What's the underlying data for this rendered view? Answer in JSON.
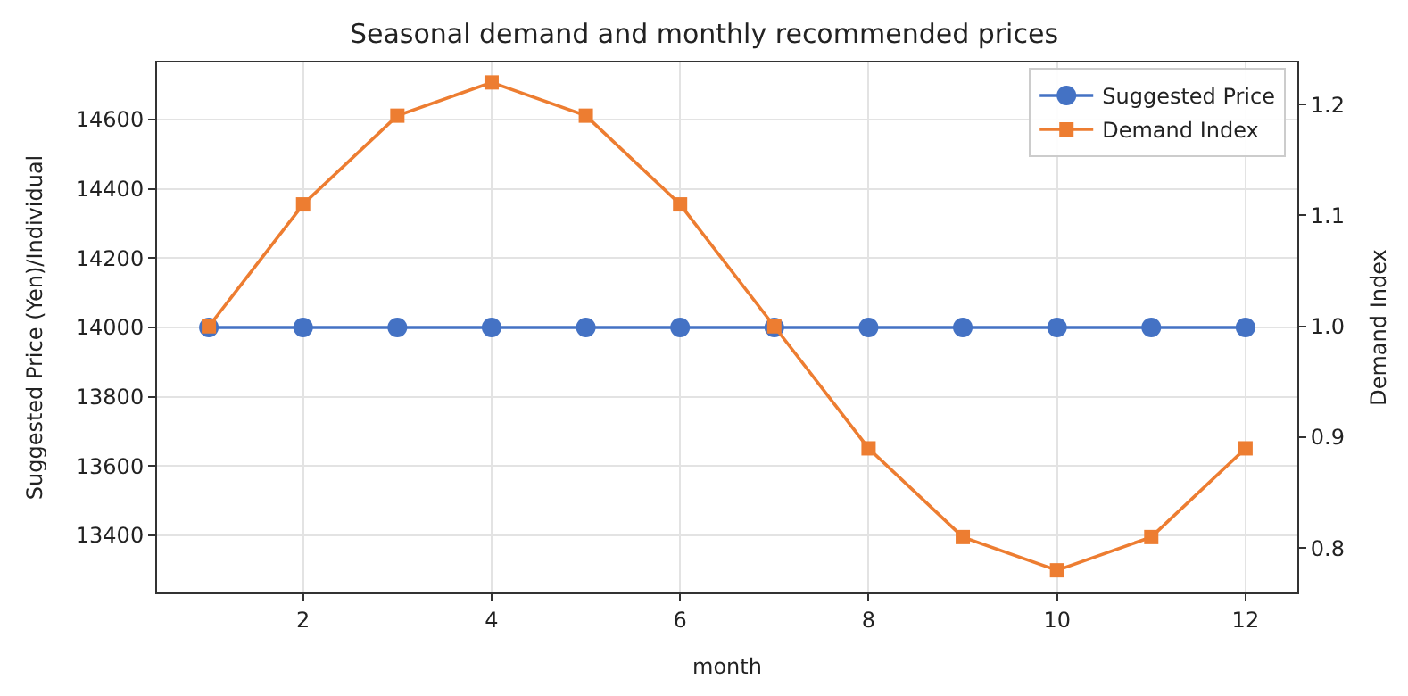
{
  "chart_data": {
    "type": "line",
    "title": "Seasonal demand and monthly recommended prices",
    "xlabel": "month",
    "ylabel": "Suggested Price (Yen)/Individual",
    "y2label": "Demand Index",
    "x": [
      1,
      2,
      3,
      4,
      5,
      6,
      7,
      8,
      9,
      10,
      11,
      12
    ],
    "series": [
      {
        "name": "Suggested Price",
        "color": "#4472c4",
        "marker": "circle",
        "values": [
          14000,
          14000,
          14000,
          14000,
          14000,
          14000,
          14000,
          14000,
          14000,
          14000,
          14000,
          14000
        ]
      },
      {
        "name": "Demand Index",
        "color": "#ed7d31",
        "marker": "square",
        "axis": "y2",
        "values": [
          1.0,
          1.11,
          1.19,
          1.22,
          1.19,
          1.11,
          1.0,
          0.89,
          0.81,
          0.78,
          0.81,
          0.89
        ]
      }
    ],
    "xlim": [
      0.45,
      12.55
    ],
    "xticks": [
      2,
      4,
      6,
      8,
      10,
      12
    ],
    "ylim": [
      13235,
      14765
    ],
    "yticks": [
      13400,
      13600,
      13800,
      14000,
      14200,
      14400,
      14600
    ],
    "y2lim": [
      0.76,
      1.238
    ],
    "y2ticks": [
      0.8,
      0.9,
      {
        "value": 1,
        "label": "1.0"
      },
      1.1,
      1.2
    ],
    "grid": true,
    "legend": "top right",
    "line_style": "solid"
  }
}
